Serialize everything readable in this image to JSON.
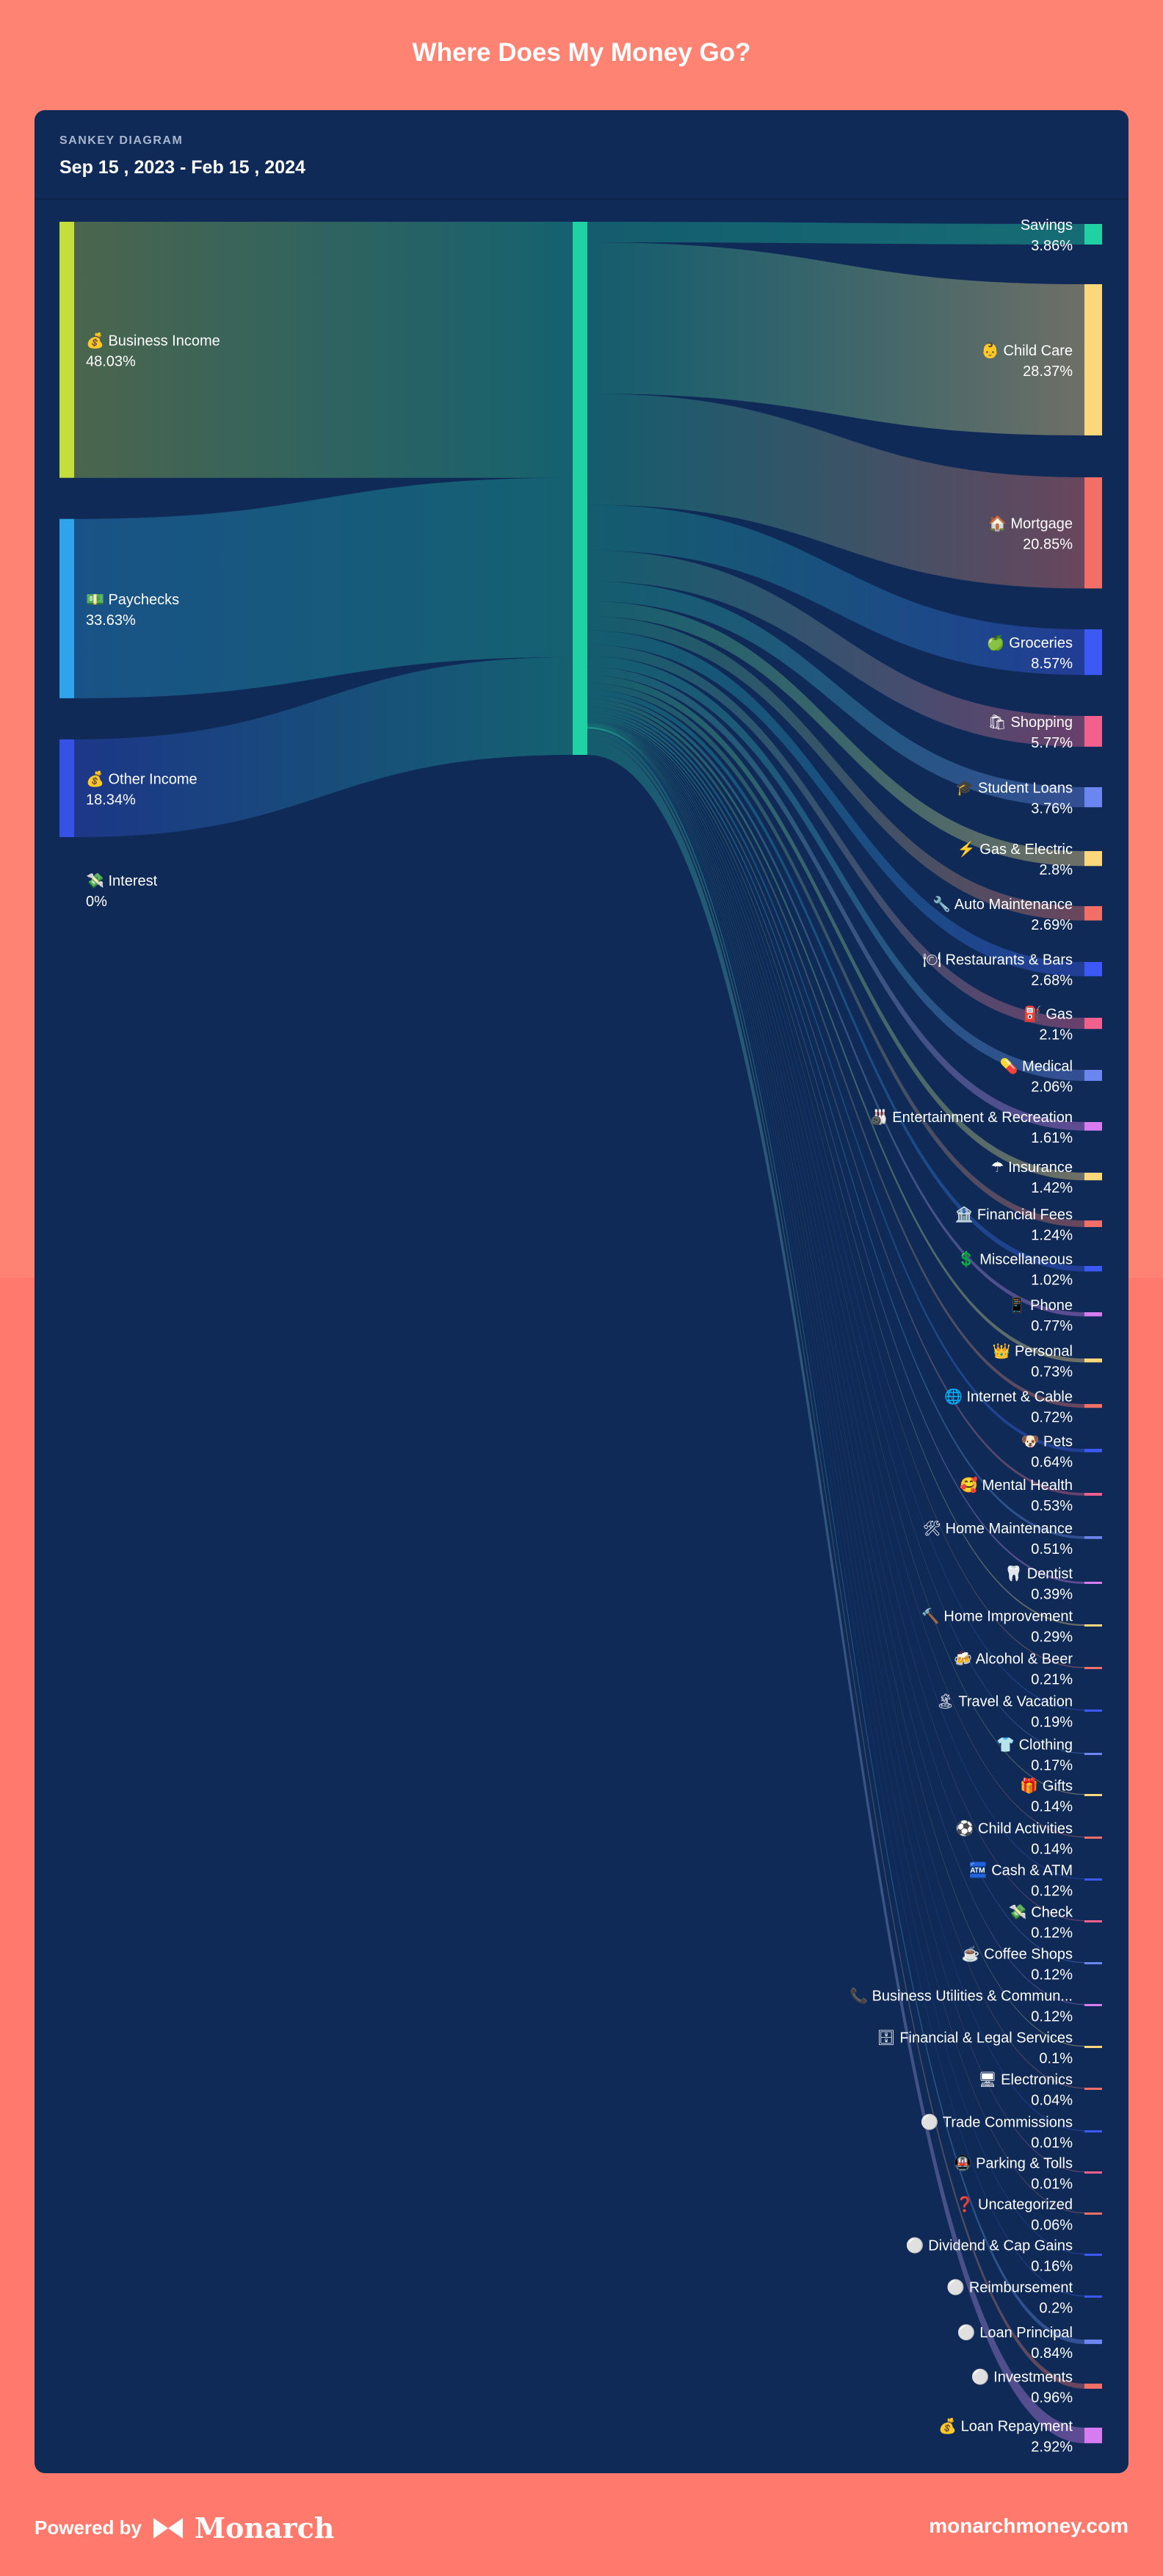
{
  "page": {
    "title": "Where Does My Money Go?"
  },
  "card": {
    "kicker": "SANKEY DIAGRAM",
    "date_range": "Sep 15 , 2023 - Feb 15 , 2024"
  },
  "footer": {
    "powered_by": "Powered by",
    "brand": "Monarch",
    "url": "monarchmoney.com"
  },
  "colors": {
    "center_node": "#1fd1a3",
    "card_bg": "#0f2a57",
    "page_bg": "#ff7a6c"
  },
  "chart_data": {
    "type": "sankey",
    "title": "Where Does My Money Go?",
    "sources": [
      {
        "name": "Business Income",
        "icon": "💰",
        "percent": 48.03,
        "label": "48.03%",
        "color": "#c6de3a"
      },
      {
        "name": "Paychecks",
        "icon": "💵",
        "percent": 33.63,
        "label": "33.63%",
        "color": "#2ea4ea"
      },
      {
        "name": "Other Income",
        "icon": "💰",
        "percent": 18.34,
        "label": "18.34%",
        "color": "#3652e6"
      },
      {
        "name": "Interest",
        "icon": "💸",
        "percent": 0,
        "label": "0%",
        "color": "#3aa36b"
      }
    ],
    "targets": [
      {
        "name": "Savings",
        "icon": "",
        "percent": 3.86,
        "label": "3.86%",
        "color": "#1fd1a3"
      },
      {
        "name": "Child Care",
        "icon": "👶",
        "percent": 28.37,
        "label": "28.37%",
        "color": "#fdd77c"
      },
      {
        "name": "Mortgage",
        "icon": "🏠",
        "percent": 20.85,
        "label": "20.85%",
        "color": "#f16f66"
      },
      {
        "name": "Groceries",
        "icon": "🍏",
        "percent": 8.57,
        "label": "8.57%",
        "color": "#3d59f5"
      },
      {
        "name": "Shopping",
        "icon": "🛍",
        "percent": 5.77,
        "label": "5.77%",
        "color": "#f2608d"
      },
      {
        "name": "Student Loans",
        "icon": "🎓",
        "percent": 3.76,
        "label": "3.76%",
        "color": "#6b86f0"
      },
      {
        "name": "Gas & Electric",
        "icon": "⚡",
        "percent": 2.8,
        "label": "2.8%",
        "color": "#fdd77c"
      },
      {
        "name": "Auto Maintenance",
        "icon": "🔧",
        "percent": 2.69,
        "label": "2.69%",
        "color": "#f16f66"
      },
      {
        "name": "Restaurants & Bars",
        "icon": "🍽",
        "percent": 2.68,
        "label": "2.68%",
        "color": "#3d59f5"
      },
      {
        "name": "Gas",
        "icon": "⛽",
        "percent": 2.1,
        "label": "2.1%",
        "color": "#f2608d"
      },
      {
        "name": "Medical",
        "icon": "💊",
        "percent": 2.06,
        "label": "2.06%",
        "color": "#6b86f0"
      },
      {
        "name": "Entertainment & Recreation",
        "icon": "🎳",
        "percent": 1.61,
        "label": "1.61%",
        "color": "#d77cf0"
      },
      {
        "name": "Insurance",
        "icon": "☂",
        "percent": 1.42,
        "label": "1.42%",
        "color": "#fdd77c"
      },
      {
        "name": "Financial Fees",
        "icon": "🏦",
        "percent": 1.24,
        "label": "1.24%",
        "color": "#f16f66"
      },
      {
        "name": "Miscellaneous",
        "icon": "💲",
        "percent": 1.02,
        "label": "1.02%",
        "color": "#3d59f5"
      },
      {
        "name": "Phone",
        "icon": "📱",
        "percent": 0.77,
        "label": "0.77%",
        "color": "#d77cf0"
      },
      {
        "name": "Personal",
        "icon": "👑",
        "percent": 0.73,
        "label": "0.73%",
        "color": "#fdd77c"
      },
      {
        "name": "Internet & Cable",
        "icon": "🌐",
        "percent": 0.72,
        "label": "0.72%",
        "color": "#f16f66"
      },
      {
        "name": "Pets",
        "icon": "🐶",
        "percent": 0.64,
        "label": "0.64%",
        "color": "#3d59f5"
      },
      {
        "name": "Mental Health",
        "icon": "🥰",
        "percent": 0.53,
        "label": "0.53%",
        "color": "#f2608d"
      },
      {
        "name": "Home Maintenance",
        "icon": "🛠",
        "percent": 0.51,
        "label": "0.51%",
        "color": "#6b86f0"
      },
      {
        "name": "Dentist",
        "icon": "🦷",
        "percent": 0.39,
        "label": "0.39%",
        "color": "#d77cf0"
      },
      {
        "name": "Home Improvement",
        "icon": "🔨",
        "percent": 0.29,
        "label": "0.29%",
        "color": "#fdd77c"
      },
      {
        "name": "Alcohol & Beer",
        "icon": "🍻",
        "percent": 0.21,
        "label": "0.21%",
        "color": "#f16f66"
      },
      {
        "name": "Travel & Vacation",
        "icon": "🏝",
        "percent": 0.19,
        "label": "0.19%",
        "color": "#3d59f5"
      },
      {
        "name": "Clothing",
        "icon": "👕",
        "percent": 0.17,
        "label": "0.17%",
        "color": "#6b86f0"
      },
      {
        "name": "Gifts",
        "icon": "🎁",
        "percent": 0.14,
        "label": "0.14%",
        "color": "#fdd77c"
      },
      {
        "name": "Child Activities",
        "icon": "⚽",
        "percent": 0.14,
        "label": "0.14%",
        "color": "#f16f66"
      },
      {
        "name": "Cash & ATM",
        "icon": "🏧",
        "percent": 0.12,
        "label": "0.12%",
        "color": "#3d59f5"
      },
      {
        "name": "Check",
        "icon": "💸",
        "percent": 0.12,
        "label": "0.12%",
        "color": "#f2608d"
      },
      {
        "name": "Coffee Shops",
        "icon": "☕",
        "percent": 0.12,
        "label": "0.12%",
        "color": "#6b86f0"
      },
      {
        "name": "Business Utilities & Commun...",
        "icon": "📞",
        "percent": 0.12,
        "label": "0.12%",
        "color": "#d77cf0"
      },
      {
        "name": "Financial & Legal Services",
        "icon": "🗄",
        "percent": 0.1,
        "label": "0.1%",
        "color": "#fdd77c"
      },
      {
        "name": "Electronics",
        "icon": "🖥",
        "percent": 0.04,
        "label": "0.04%",
        "color": "#f16f66"
      },
      {
        "name": "Trade Commissions",
        "icon": "⚪",
        "percent": 0.01,
        "label": "0.01%",
        "color": "#3d59f5"
      },
      {
        "name": "Parking & Tolls",
        "icon": "🚇",
        "percent": 0.01,
        "label": "0.01%",
        "color": "#f2608d"
      },
      {
        "name": "Uncategorized",
        "icon": "❓",
        "percent": 0.06,
        "label": "0.06%",
        "color": "#f16f66"
      },
      {
        "name": "Dividend & Cap Gains",
        "icon": "⚪",
        "percent": 0.16,
        "label": "0.16%",
        "color": "#3d59f5"
      },
      {
        "name": "Reimbursement",
        "icon": "⚪",
        "percent": 0.2,
        "label": "0.2%",
        "color": "#3d59f5"
      },
      {
        "name": "Loan Principal",
        "icon": "⚪",
        "percent": 0.84,
        "label": "0.84%",
        "color": "#6b86f0"
      },
      {
        "name": "Investments",
        "icon": "⚪",
        "percent": 0.96,
        "label": "0.96%",
        "color": "#f16f66"
      },
      {
        "name": "Loan Repayment",
        "icon": "💰",
        "percent": 2.92,
        "label": "2.92%",
        "color": "#d77cf0"
      }
    ]
  }
}
